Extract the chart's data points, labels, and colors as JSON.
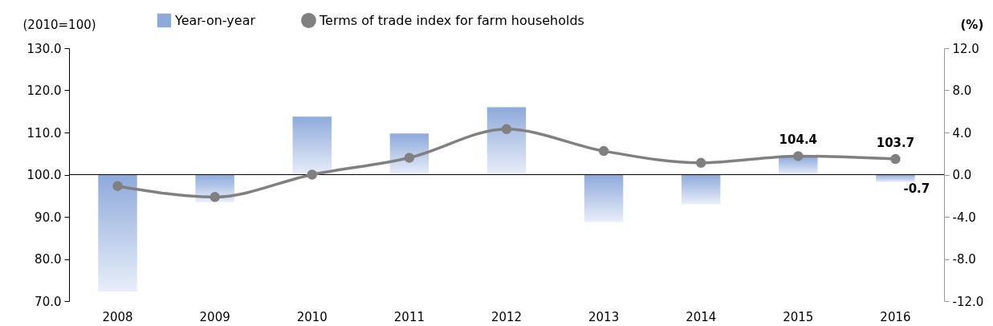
{
  "chart_data": {
    "type": "bar",
    "categories": [
      "2008",
      "2009",
      "2010",
      "2011",
      "2012",
      "2013",
      "2014",
      "2015",
      "2016"
    ],
    "ylabel": "(2010=100)",
    "y2label": "(%)",
    "ylim": [
      70,
      130
    ],
    "yticks": [
      {
        "value": 70,
        "label": "70.0"
      },
      {
        "value": 80,
        "label": "80.0"
      },
      {
        "value": 90,
        "label": "90.0"
      },
      {
        "value": 100,
        "label": "100.0"
      },
      {
        "value": 110,
        "label": "110.0"
      },
      {
        "value": 120,
        "label": "120.0"
      },
      {
        "value": 130,
        "label": "130.0"
      }
    ],
    "y2lim": [
      -12,
      12
    ],
    "y2ticks": [
      {
        "value": -12,
        "label": "-12.0"
      },
      {
        "value": -8,
        "label": "-8.0"
      },
      {
        "value": -4,
        "label": "-4.0"
      },
      {
        "value": 0,
        "label": "0.0"
      },
      {
        "value": 4,
        "label": "4.0"
      },
      {
        "value": 8,
        "label": "8.0"
      },
      {
        "value": 12,
        "label": "12.0"
      }
    ],
    "legend": "top",
    "marker": "circle",
    "series": [
      {
        "name": "Year-on-year",
        "axis": "y2",
        "color": "#8eaadb",
        "values": [
          -11.1,
          -2.6,
          5.5,
          3.9,
          6.4,
          -4.5,
          -2.8,
          1.7,
          -0.7
        ],
        "value_labels": [
          null,
          null,
          null,
          null,
          null,
          null,
          null,
          null,
          "-0.7"
        ]
      },
      {
        "name": "Terms of trade index for farm households",
        "type": "line",
        "axis": "y",
        "color": "#808080",
        "values": [
          97.3,
          94.7,
          100.0,
          104.0,
          110.8,
          105.6,
          102.8,
          104.4,
          103.7
        ],
        "value_labels": [
          null,
          null,
          null,
          null,
          null,
          null,
          null,
          "104.4",
          "103.7"
        ]
      }
    ]
  }
}
